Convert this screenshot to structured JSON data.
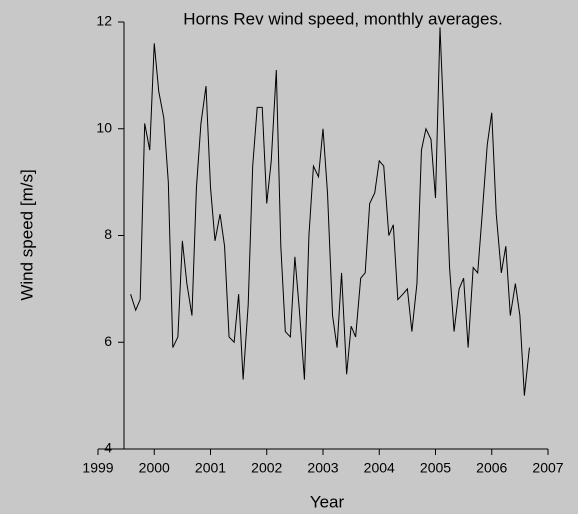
{
  "chart_data": {
    "type": "line",
    "title": "Horns Rev wind speed, monthly averages.",
    "x_label": "Year",
    "y_label": "Wind speed [m/s]",
    "xlim": [
      1999,
      2007
    ],
    "xticks": [
      1999,
      2000,
      2001,
      2002,
      2003,
      2004,
      2005,
      2006,
      2007
    ],
    "ylim": [
      4,
      12
    ],
    "yticks": [
      4,
      6,
      8,
      10,
      12
    ],
    "series": [
      {
        "name": "Wind speed",
        "color": "#000000",
        "x": [
          1999.58,
          1999.67,
          1999.75,
          1999.83,
          1999.92,
          2000,
          2000.08,
          2000.17,
          2000.25,
          2000.33,
          2000.42,
          2000.5,
          2000.58,
          2000.67,
          2000.75,
          2000.83,
          2000.92,
          2001,
          2001.08,
          2001.17,
          2001.25,
          2001.33,
          2001.42,
          2001.5,
          2001.58,
          2001.67,
          2001.75,
          2001.83,
          2001.92,
          2002,
          2002.08,
          2002.17,
          2002.25,
          2002.33,
          2002.42,
          2002.5,
          2002.58,
          2002.67,
          2002.75,
          2002.83,
          2002.92,
          2003,
          2003.08,
          2003.17,
          2003.25,
          2003.33,
          2003.42,
          2003.5,
          2003.58,
          2003.67,
          2003.75,
          2003.83,
          2003.92,
          2004,
          2004.08,
          2004.17,
          2004.25,
          2004.33,
          2004.42,
          2004.5,
          2004.58,
          2004.67,
          2004.75,
          2004.83,
          2004.92,
          2005,
          2005.08,
          2005.17,
          2005.25,
          2005.33,
          2005.42,
          2005.5,
          2005.58,
          2005.67,
          2005.75,
          2005.83,
          2005.92,
          2006,
          2006.08,
          2006.17,
          2006.25,
          2006.33,
          2006.42,
          2006.5,
          2006.58,
          2006.67
        ],
        "values": [
          6.9,
          6.6,
          6.8,
          10.1,
          9.6,
          11.6,
          10.7,
          10.2,
          9.0,
          5.9,
          6.1,
          7.9,
          7.1,
          6.5,
          8.9,
          10.1,
          10.8,
          8.9,
          7.9,
          8.4,
          7.8,
          6.1,
          6.0,
          6.9,
          5.3,
          6.7,
          9.3,
          10.4,
          10.4,
          8.6,
          9.4,
          11.1,
          7.8,
          6.2,
          6.1,
          7.6,
          6.6,
          5.3,
          8.0,
          9.3,
          9.1,
          10.0,
          8.8,
          6.5,
          5.9,
          7.3,
          5.4,
          6.3,
          6.1,
          7.2,
          7.3,
          8.6,
          8.8,
          9.4,
          9.3,
          8.0,
          8.2,
          6.8,
          6.9,
          7.0,
          6.2,
          7.1,
          9.6,
          10.0,
          9.8,
          8.7,
          11.9,
          9.6,
          7.4,
          6.2,
          7.0,
          7.2,
          5.9,
          7.4,
          7.3,
          8.4,
          9.7,
          10.3,
          8.4,
          7.3,
          7.8,
          6.5,
          7.1,
          6.5,
          5.0,
          5.9
        ]
      }
    ]
  }
}
